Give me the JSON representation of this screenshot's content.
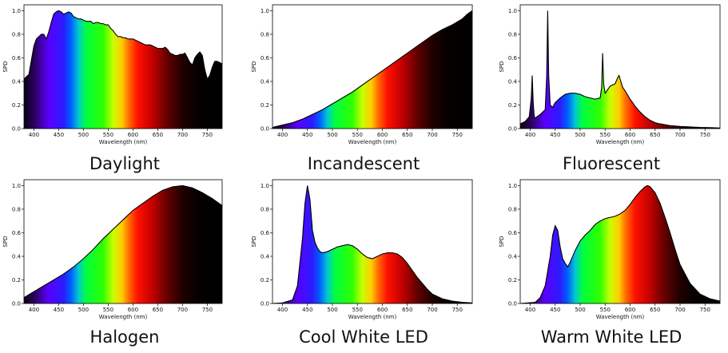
{
  "colors": {
    "background": "#ffffff",
    "curve": "#000000",
    "frame": "#000000"
  },
  "chart_data": [
    {
      "type": "area",
      "caption": "Daylight",
      "xlabel": "Wavelength (nm)",
      "ylabel": "SPD",
      "xlim": [
        380,
        780
      ],
      "ylim": [
        0,
        1.05
      ],
      "xticks": [
        400,
        450,
        500,
        550,
        600,
        650,
        700,
        750
      ],
      "yticks": [
        "0.0",
        "0.2",
        "0.4",
        "0.6",
        "0.8",
        "1.0"
      ],
      "grid": false,
      "fill": "visible-spectrum",
      "x": [
        380,
        385,
        390,
        395,
        400,
        405,
        410,
        415,
        420,
        425,
        430,
        435,
        440,
        445,
        450,
        455,
        460,
        465,
        470,
        475,
        480,
        485,
        490,
        495,
        500,
        505,
        510,
        515,
        520,
        525,
        530,
        535,
        540,
        545,
        550,
        555,
        560,
        565,
        570,
        575,
        580,
        585,
        590,
        595,
        600,
        605,
        610,
        615,
        620,
        625,
        630,
        635,
        640,
        645,
        650,
        655,
        660,
        665,
        670,
        675,
        680,
        685,
        690,
        695,
        700,
        705,
        710,
        715,
        720,
        725,
        730,
        735,
        740,
        745,
        750,
        755,
        760,
        765,
        770,
        775,
        780
      ],
      "y": [
        0.42,
        0.44,
        0.46,
        0.58,
        0.7,
        0.76,
        0.78,
        0.8,
        0.8,
        0.76,
        0.82,
        0.9,
        0.97,
        0.99,
        1.0,
        0.99,
        0.97,
        0.98,
        0.99,
        0.98,
        0.95,
        0.94,
        0.93,
        0.93,
        0.92,
        0.91,
        0.91,
        0.91,
        0.89,
        0.9,
        0.9,
        0.89,
        0.89,
        0.88,
        0.88,
        0.85,
        0.83,
        0.8,
        0.78,
        0.78,
        0.77,
        0.77,
        0.76,
        0.76,
        0.76,
        0.75,
        0.74,
        0.73,
        0.72,
        0.71,
        0.71,
        0.71,
        0.7,
        0.69,
        0.68,
        0.68,
        0.68,
        0.69,
        0.67,
        0.64,
        0.63,
        0.62,
        0.62,
        0.63,
        0.63,
        0.64,
        0.6,
        0.56,
        0.54,
        0.6,
        0.63,
        0.65,
        0.62,
        0.5,
        0.42,
        0.45,
        0.52,
        0.57,
        0.57,
        0.56,
        0.55
      ]
    },
    {
      "type": "area",
      "caption": "Incandescent",
      "xlabel": "Wavelength (nm)",
      "ylabel": "SPD",
      "xlim": [
        380,
        780
      ],
      "ylim": [
        0,
        1.05
      ],
      "xticks": [
        400,
        450,
        500,
        550,
        600,
        650,
        700,
        750
      ],
      "yticks": [
        "0.0",
        "0.2",
        "0.4",
        "0.6",
        "0.8",
        "1.0"
      ],
      "grid": false,
      "fill": "visible-spectrum",
      "x": [
        380,
        400,
        420,
        440,
        460,
        480,
        500,
        520,
        540,
        560,
        580,
        600,
        620,
        640,
        660,
        680,
        700,
        720,
        740,
        760,
        770,
        780
      ],
      "y": [
        0.01,
        0.03,
        0.05,
        0.08,
        0.12,
        0.16,
        0.21,
        0.26,
        0.31,
        0.37,
        0.43,
        0.49,
        0.55,
        0.61,
        0.67,
        0.73,
        0.79,
        0.84,
        0.88,
        0.93,
        0.97,
        1.0
      ]
    },
    {
      "type": "area",
      "caption": "Fluorescent",
      "xlabel": "Wavelength (nm)",
      "ylabel": "SPD",
      "xlim": [
        380,
        780
      ],
      "ylim": [
        0,
        1.05
      ],
      "xticks": [
        400,
        450,
        500,
        550,
        600,
        650,
        700,
        750
      ],
      "yticks": [
        "0.0",
        "0.2",
        "0.4",
        "0.6",
        "0.8",
        "1.0"
      ],
      "grid": false,
      "fill": "visible-spectrum",
      "x": [
        380,
        390,
        398,
        402,
        404,
        406,
        408,
        410,
        420,
        430,
        433,
        435,
        437,
        440,
        445,
        450,
        460,
        470,
        480,
        490,
        500,
        510,
        520,
        530,
        540,
        543,
        545,
        547,
        550,
        555,
        560,
        570,
        575,
        578,
        580,
        585,
        590,
        600,
        610,
        620,
        630,
        640,
        650,
        660,
        680,
        700,
        720,
        740,
        760,
        780
      ],
      "y": [
        0.04,
        0.06,
        0.1,
        0.25,
        0.45,
        0.22,
        0.1,
        0.09,
        0.12,
        0.16,
        0.45,
        1.0,
        0.45,
        0.2,
        0.18,
        0.22,
        0.26,
        0.29,
        0.3,
        0.3,
        0.29,
        0.27,
        0.26,
        0.25,
        0.26,
        0.35,
        0.64,
        0.38,
        0.3,
        0.33,
        0.36,
        0.38,
        0.43,
        0.45,
        0.42,
        0.35,
        0.32,
        0.25,
        0.19,
        0.14,
        0.1,
        0.07,
        0.05,
        0.04,
        0.025,
        0.018,
        0.014,
        0.01,
        0.008,
        0.005
      ]
    },
    {
      "type": "area",
      "caption": "Halogen",
      "xlabel": "Wavelength (nm)",
      "ylabel": "SPD",
      "xlim": [
        380,
        780
      ],
      "ylim": [
        0,
        1.05
      ],
      "xticks": [
        400,
        450,
        500,
        550,
        600,
        650,
        700,
        750
      ],
      "yticks": [
        "0.0",
        "0.2",
        "0.4",
        "0.6",
        "0.8",
        "1.0"
      ],
      "grid": false,
      "fill": "visible-spectrum",
      "x": [
        380,
        400,
        420,
        440,
        460,
        480,
        500,
        520,
        540,
        560,
        580,
        600,
        620,
        640,
        660,
        680,
        700,
        720,
        740,
        760,
        780
      ],
      "y": [
        0.05,
        0.1,
        0.15,
        0.2,
        0.25,
        0.31,
        0.38,
        0.46,
        0.55,
        0.63,
        0.71,
        0.79,
        0.85,
        0.91,
        0.96,
        0.99,
        1.0,
        0.98,
        0.94,
        0.89,
        0.83
      ]
    },
    {
      "type": "area",
      "caption": "Cool White LED",
      "xlabel": "Wavelength (nm)",
      "ylabel": "SPD",
      "xlim": [
        380,
        780
      ],
      "ylim": [
        0,
        1.05
      ],
      "xticks": [
        400,
        450,
        500,
        550,
        600,
        650,
        700,
        750
      ],
      "yticks": [
        "0.0",
        "0.2",
        "0.4",
        "0.6",
        "0.8",
        "1.0"
      ],
      "grid": false,
      "fill": "visible-spectrum",
      "x": [
        380,
        400,
        420,
        430,
        440,
        445,
        450,
        455,
        460,
        465,
        470,
        475,
        480,
        490,
        500,
        510,
        520,
        530,
        540,
        550,
        560,
        570,
        580,
        590,
        600,
        610,
        620,
        630,
        640,
        650,
        660,
        670,
        680,
        690,
        700,
        720,
        740,
        760,
        780
      ],
      "y": [
        0.0,
        0.005,
        0.03,
        0.15,
        0.55,
        0.85,
        1.0,
        0.88,
        0.62,
        0.52,
        0.47,
        0.44,
        0.43,
        0.44,
        0.46,
        0.48,
        0.49,
        0.5,
        0.49,
        0.46,
        0.42,
        0.39,
        0.38,
        0.4,
        0.42,
        0.43,
        0.43,
        0.42,
        0.39,
        0.34,
        0.28,
        0.22,
        0.17,
        0.12,
        0.08,
        0.04,
        0.02,
        0.01,
        0.005
      ]
    },
    {
      "type": "area",
      "caption": "Warm White LED",
      "xlabel": "Wavelength (nm)",
      "ylabel": "SPD",
      "xlim": [
        380,
        780
      ],
      "ylim": [
        0,
        1.05
      ],
      "xticks": [
        400,
        450,
        500,
        550,
        600,
        650,
        700,
        750
      ],
      "yticks": [
        "0.0",
        "0.2",
        "0.4",
        "0.6",
        "0.8",
        "1.0"
      ],
      "grid": false,
      "fill": "visible-spectrum",
      "x": [
        380,
        410,
        420,
        430,
        440,
        445,
        450,
        455,
        460,
        465,
        470,
        475,
        480,
        490,
        500,
        510,
        520,
        530,
        540,
        550,
        560,
        570,
        580,
        590,
        600,
        610,
        620,
        630,
        635,
        640,
        650,
        660,
        670,
        680,
        690,
        700,
        720,
        740,
        760,
        780
      ],
      "y": [
        0.0,
        0.01,
        0.05,
        0.15,
        0.4,
        0.58,
        0.66,
        0.62,
        0.48,
        0.38,
        0.34,
        0.31,
        0.35,
        0.45,
        0.53,
        0.58,
        0.62,
        0.67,
        0.7,
        0.72,
        0.73,
        0.74,
        0.76,
        0.79,
        0.84,
        0.9,
        0.95,
        0.99,
        1.0,
        0.99,
        0.94,
        0.85,
        0.73,
        0.6,
        0.46,
        0.33,
        0.17,
        0.08,
        0.04,
        0.02
      ]
    }
  ]
}
